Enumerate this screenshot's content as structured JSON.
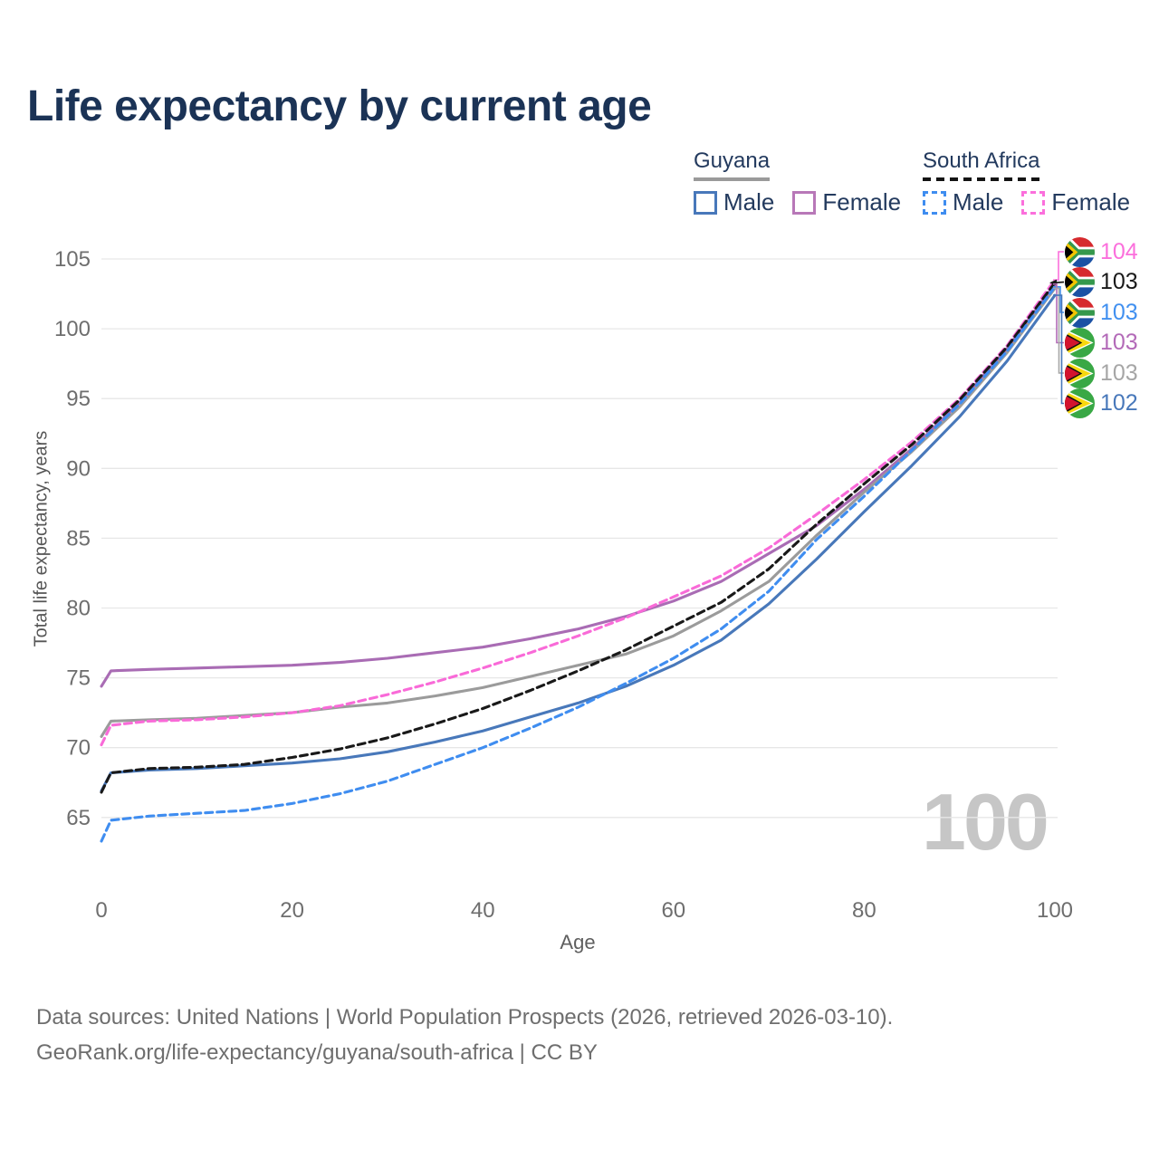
{
  "title": "Life expectancy by current age",
  "watermark": "100",
  "legend": {
    "groups": [
      {
        "label": "Guyana",
        "line_style": "solid",
        "line_color": "#9a9a9a"
      },
      {
        "label": "South Africa",
        "line_style": "dashed",
        "line_color": "#141414"
      }
    ],
    "items": [
      {
        "label": "Male",
        "color": "#4878ba",
        "dashed": false
      },
      {
        "label": "Female",
        "color": "#b878b8",
        "dashed": false
      },
      {
        "label": "Male",
        "color": "#3f8df0",
        "dashed": true
      },
      {
        "label": "Female",
        "color": "#fb6fdc",
        "dashed": true
      }
    ]
  },
  "footer": {
    "line1": "Data sources: United Nations | World Population Prospects (2026, retrieved 2026-03-10).",
    "line2": "GeoRank.org/life-expectancy/guyana/south-africa | CC BY"
  },
  "chart_data": {
    "type": "line",
    "xlabel": "Age",
    "ylabel": "Total life expectancy, years",
    "xlim": [
      0,
      100
    ],
    "ylim": [
      63,
      106
    ],
    "xticks": [
      0,
      20,
      40,
      60,
      80,
      100
    ],
    "yticks": [
      65,
      70,
      75,
      80,
      85,
      90,
      95,
      100,
      105
    ],
    "grid": "horizontal",
    "legend_position": "top-right",
    "x": [
      0,
      1,
      5,
      10,
      15,
      20,
      25,
      30,
      35,
      40,
      45,
      50,
      55,
      60,
      65,
      70,
      75,
      80,
      85,
      90,
      95,
      100
    ],
    "series": [
      {
        "key": "guyana_female",
        "name": "Guyana Female",
        "color": "#a96cb4",
        "dashed": false,
        "values": [
          74.4,
          75.5,
          75.6,
          75.7,
          75.8,
          75.9,
          76.1,
          76.4,
          76.8,
          77.2,
          77.8,
          78.5,
          79.4,
          80.5,
          81.9,
          83.9,
          85.9,
          88.5,
          91.4,
          94.7,
          98.6,
          103.2
        ]
      },
      {
        "key": "guyana_both",
        "name": "Guyana (both sexes)",
        "color": "#9b9b9b",
        "dashed": false,
        "values": [
          70.8,
          71.9,
          72.0,
          72.1,
          72.3,
          72.5,
          72.9,
          73.2,
          73.7,
          74.3,
          75.1,
          75.9,
          76.7,
          78.0,
          79.8,
          81.9,
          85.2,
          88.3,
          91.2,
          94.4,
          98.3,
          102.9
        ]
      },
      {
        "key": "guyana_male",
        "name": "Guyana Male",
        "color": "#4878ba",
        "dashed": false,
        "values": [
          66.9,
          68.2,
          68.4,
          68.5,
          68.7,
          68.9,
          69.2,
          69.7,
          70.4,
          71.2,
          72.2,
          73.2,
          74.4,
          75.9,
          77.7,
          80.3,
          83.5,
          86.9,
          90.2,
          93.7,
          97.7,
          102.4
        ]
      },
      {
        "key": "sa_female",
        "name": "South Africa Female",
        "color": "#f96ad8",
        "dashed": true,
        "values": [
          70.2,
          71.6,
          71.9,
          72.0,
          72.2,
          72.5,
          73.0,
          73.8,
          74.7,
          75.7,
          76.8,
          78.0,
          79.3,
          80.8,
          82.3,
          84.3,
          86.7,
          89.2,
          91.9,
          95.0,
          98.8,
          103.5
        ]
      },
      {
        "key": "sa_both",
        "name": "South Africa (both sexes)",
        "color": "#191919",
        "dashed": true,
        "values": [
          66.8,
          68.2,
          68.5,
          68.6,
          68.8,
          69.3,
          69.9,
          70.7,
          71.7,
          72.8,
          74.1,
          75.5,
          77.0,
          78.7,
          80.4,
          82.8,
          86.0,
          88.9,
          91.7,
          94.9,
          98.7,
          103.3
        ]
      },
      {
        "key": "sa_male",
        "name": "South Africa Male",
        "color": "#3f8df0",
        "dashed": true,
        "values": [
          63.3,
          64.8,
          65.1,
          65.3,
          65.5,
          66.0,
          66.7,
          67.6,
          68.8,
          70.0,
          71.4,
          72.9,
          74.6,
          76.4,
          78.5,
          81.2,
          84.9,
          88.0,
          91.3,
          94.6,
          98.4,
          103.0
        ]
      }
    ],
    "end_labels": [
      {
        "label": "104",
        "series": "sa_female",
        "flag": "south-africa",
        "color": "#fb6fdc"
      },
      {
        "label": "103",
        "series": "sa_both",
        "flag": "south-africa",
        "color": "#191919"
      },
      {
        "label": "103",
        "series": "sa_male",
        "flag": "south-africa",
        "color": "#4190f0"
      },
      {
        "label": "103",
        "series": "guyana_female",
        "flag": "guyana",
        "color": "#b36ab8"
      },
      {
        "label": "103",
        "series": "guyana_both",
        "flag": "guyana",
        "color": "#a6a6a6"
      },
      {
        "label": "102",
        "series": "guyana_male",
        "flag": "guyana",
        "color": "#4878ba"
      }
    ]
  }
}
